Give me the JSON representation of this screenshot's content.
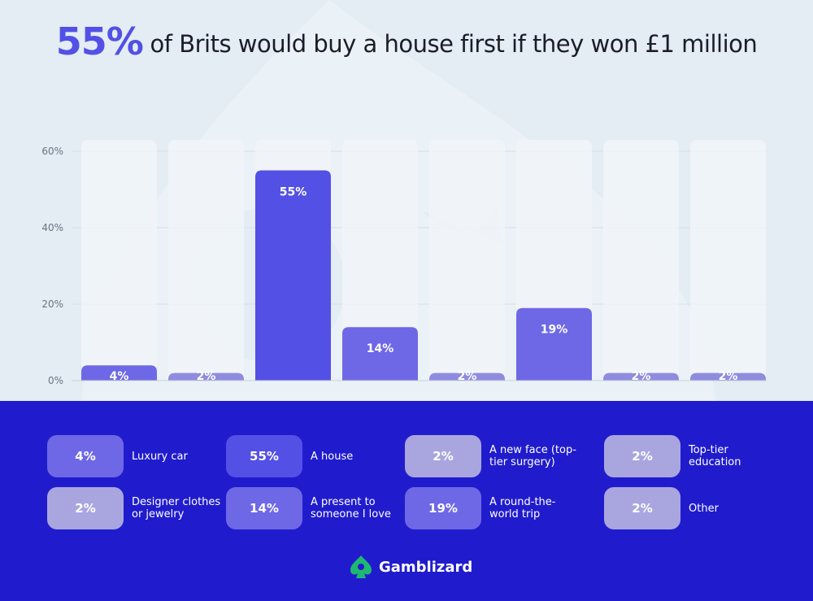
{
  "title": {
    "highlight": "55%",
    "text": "of Brits would buy a house first if they won £1 million"
  },
  "chart_data": {
    "type": "bar",
    "title": "55% of Brits would buy a house first if they won £1 million",
    "xlabel": "",
    "ylabel": "",
    "ylim": [
      0,
      60
    ],
    "yticks": [
      0,
      20,
      40,
      60
    ],
    "ytick_labels": [
      "0%",
      "20%",
      "40%",
      "60%"
    ],
    "grid": true,
    "categories": [
      "Luxury car",
      "Designer clothes or jewelry",
      "A house",
      "A present to someone I love",
      "A new face (top-tier surgery)",
      "A round-the-world trip",
      "Top-tier education",
      "Other"
    ],
    "values": [
      4,
      2,
      55,
      14,
      2,
      19,
      2,
      2
    ],
    "data_labels": [
      "4%",
      "2%",
      "55%",
      "14%",
      "2%",
      "19%",
      "2%",
      "2%"
    ],
    "bar_colors": [
      "#6e68e6",
      "#8f8cdf",
      "#5350e6",
      "#6e68e6",
      "#8f8cdf",
      "#6e68e6",
      "#8f8cdf",
      "#8f8cdf"
    ]
  },
  "legend": [
    {
      "value": "4%",
      "label": "Luxury car",
      "color": "#6e68e6"
    },
    {
      "value": "55%",
      "label": "A house",
      "color": "#5350e6"
    },
    {
      "value": "2%",
      "label": "A new face (top-tier surgery)",
      "color": "#a9a6df"
    },
    {
      "value": "2%",
      "label": "Top-tier education",
      "color": "#a9a6df"
    },
    {
      "value": "2%",
      "label": "Designer clothes or jewelry",
      "color": "#a9a6df"
    },
    {
      "value": "14%",
      "label": "A present to someone I love",
      "color": "#6e68e6"
    },
    {
      "value": "19%",
      "label": "A round-the-world trip",
      "color": "#6e68e6"
    },
    {
      "value": "2%",
      "label": "Other",
      "color": "#a9a6df"
    }
  ],
  "brand": {
    "name": "Gamblizard",
    "logo_icon": "gamblizard-logo-icon",
    "logo_color": "#1fb873"
  }
}
